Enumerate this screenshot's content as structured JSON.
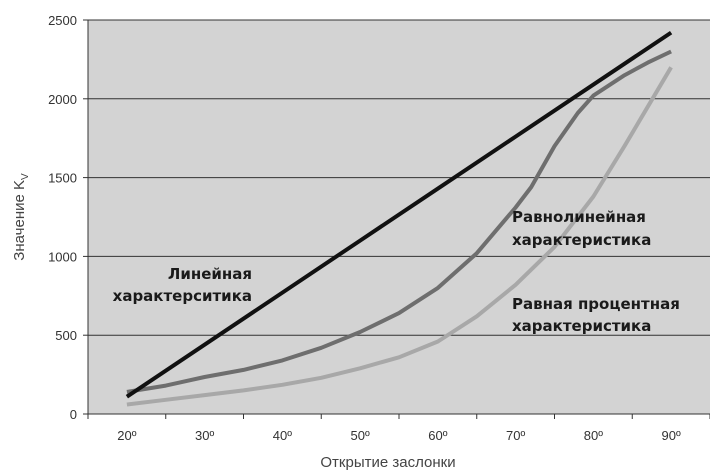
{
  "chart_data": {
    "type": "line",
    "title": "",
    "xlabel": "Открытие заслонки",
    "ylabel_main": "Значение K",
    "ylabel_sub": "V",
    "categories": [
      "20º",
      "30º",
      "40º",
      "50º",
      "60º",
      "70º",
      "80º",
      "90º"
    ],
    "x": [
      20,
      30,
      40,
      50,
      60,
      70,
      80,
      90
    ],
    "ylim": [
      0,
      2500
    ],
    "yticks": [
      "0",
      "500",
      "1000",
      "1500",
      "2000",
      "2500"
    ],
    "grid": "horizontal",
    "series": [
      {
        "color": "#111111",
        "points": [
          [
            20,
            110
          ],
          [
            30,
            440
          ],
          [
            40,
            770
          ],
          [
            50,
            1100
          ],
          [
            60,
            1430
          ],
          [
            70,
            1760
          ],
          [
            80,
            2090
          ],
          [
            90,
            2420
          ]
        ]
      },
      {
        "color": "#6e6e6e",
        "points": [
          [
            20,
            140
          ],
          [
            25,
            180
          ],
          [
            30,
            235
          ],
          [
            35,
            280
          ],
          [
            40,
            340
          ],
          [
            45,
            420
          ],
          [
            50,
            520
          ],
          [
            55,
            640
          ],
          [
            60,
            800
          ],
          [
            65,
            1020
          ],
          [
            70,
            1310
          ],
          [
            72,
            1440
          ],
          [
            75,
            1700
          ],
          [
            78,
            1910
          ],
          [
            80,
            2020
          ],
          [
            84,
            2150
          ],
          [
            87,
            2230
          ],
          [
            90,
            2300
          ]
        ]
      },
      {
        "color": "#a8a8a8",
        "points": [
          [
            20,
            60
          ],
          [
            25,
            90
          ],
          [
            30,
            120
          ],
          [
            35,
            150
          ],
          [
            40,
            185
          ],
          [
            45,
            230
          ],
          [
            50,
            290
          ],
          [
            55,
            360
          ],
          [
            60,
            460
          ],
          [
            65,
            620
          ],
          [
            70,
            820
          ],
          [
            75,
            1060
          ],
          [
            80,
            1380
          ],
          [
            84,
            1700
          ],
          [
            87,
            1950
          ],
          [
            90,
            2200
          ]
        ]
      }
    ],
    "annotations": [
      {
        "lines": [
          "Линейная",
          "характерситика"
        ]
      },
      {
        "lines": [
          "Равнолинейная",
          "характеристика"
        ]
      },
      {
        "lines": [
          "Равная процентная",
          "характеристика"
        ]
      }
    ],
    "colors": {
      "plot_background": "#d3d3d3",
      "gridline": "#333333",
      "axis": "#333333"
    }
  }
}
